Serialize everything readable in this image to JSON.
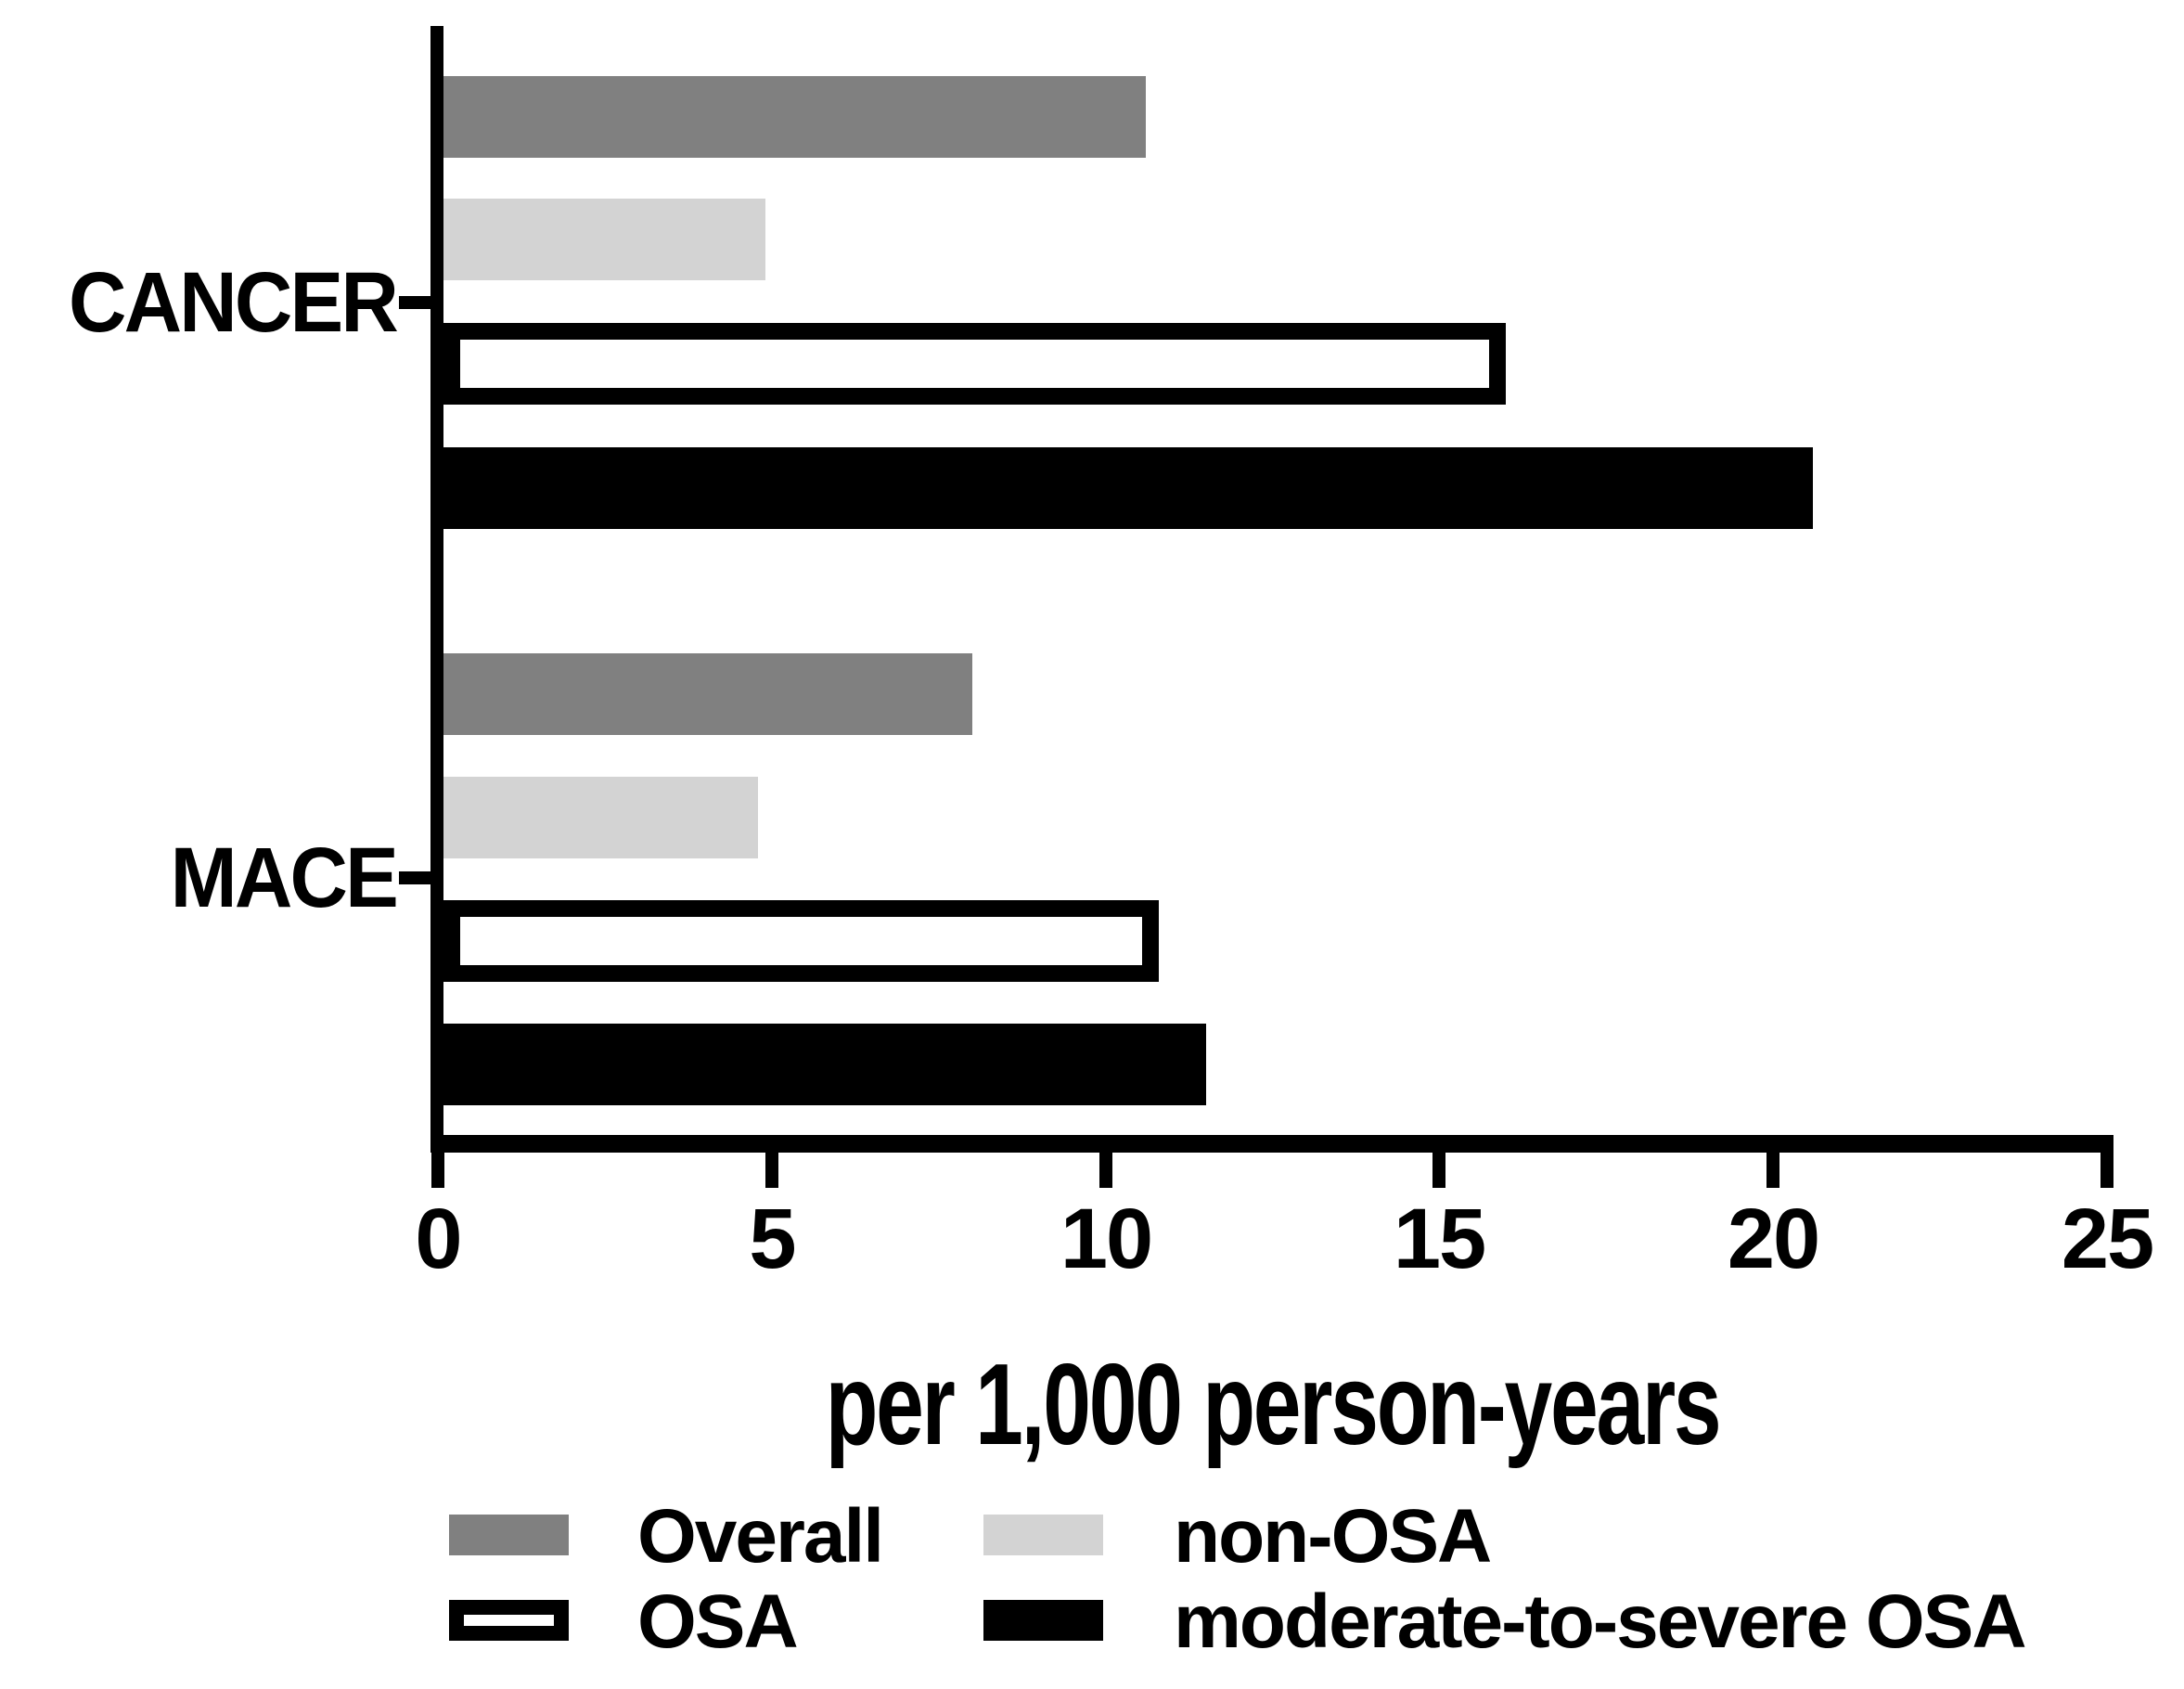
{
  "chart_data": {
    "type": "bar",
    "orientation": "horizontal",
    "xlabel": "per 1,000 person-years",
    "xlim": [
      0,
      25
    ],
    "x_ticks": [
      0,
      5,
      10,
      15,
      20,
      25
    ],
    "x_tick_labels": [
      "0",
      "5",
      "10",
      "15",
      "20",
      "25"
    ],
    "grid": false,
    "legend_position": "bottom",
    "categories": [
      "CANCER",
      "MACE"
    ],
    "series": [
      {
        "name": "Overall",
        "values": [
          10.6,
          8.0
        ],
        "fill": "#808080",
        "outlined": false
      },
      {
        "name": "non-OSA",
        "values": [
          4.9,
          4.8
        ],
        "fill": "#d3d3d3",
        "outlined": false
      },
      {
        "name": "OSA",
        "values": [
          16.0,
          10.8
        ],
        "fill": "#ffffff",
        "outlined": true
      },
      {
        "name": "moderate-to-severe OSA",
        "values": [
          20.6,
          11.5
        ],
        "fill": "#000000",
        "outlined": false
      }
    ],
    "colors": {
      "axis": "#000000",
      "background": "#ffffff",
      "overall": "#808080",
      "non_osa": "#d3d3d3",
      "osa_fill": "#ffffff",
      "osa_border": "#000000",
      "moderate_to_severe_osa": "#000000"
    }
  },
  "legend": {
    "items": [
      "Overall",
      "non-OSA",
      "OSA",
      "moderate-to-severe OSA"
    ]
  }
}
